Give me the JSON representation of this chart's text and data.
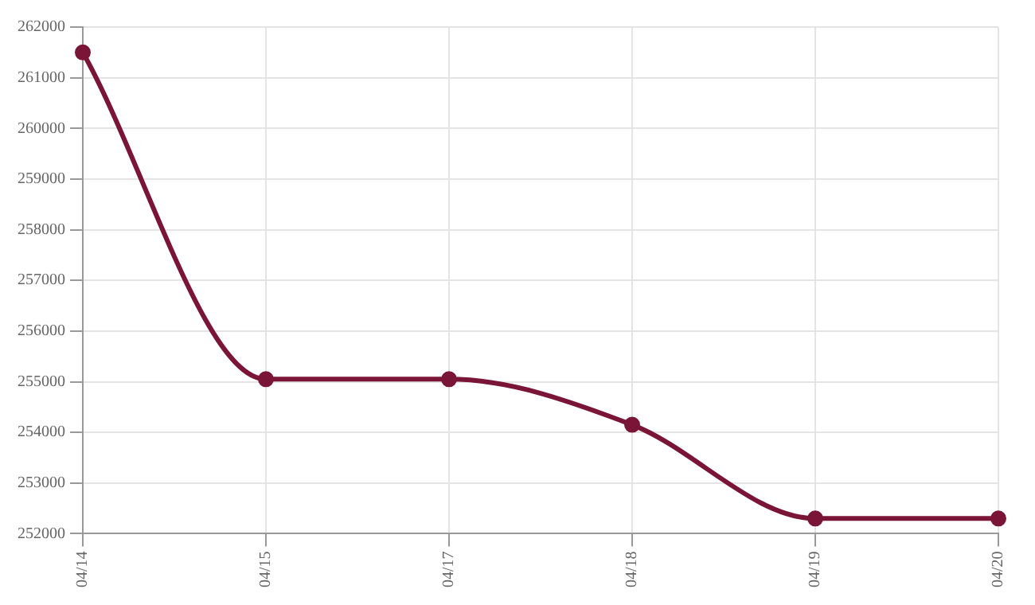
{
  "chart_data": {
    "type": "line",
    "categories": [
      "04/14",
      "04/15",
      "04/17",
      "04/18",
      "04/19",
      "04/20"
    ],
    "series": [
      {
        "color": "#7b1538",
        "values": [
          261500,
          255050,
          255050,
          254150,
          252300,
          252300
        ]
      }
    ],
    "ylim": [
      252000,
      262000
    ],
    "yticks": [
      252000,
      253000,
      254000,
      255000,
      256000,
      257000,
      258000,
      259000,
      260000,
      261000,
      262000
    ],
    "grid": true,
    "legend": false,
    "marker": "circle",
    "line_style": "solid"
  }
}
